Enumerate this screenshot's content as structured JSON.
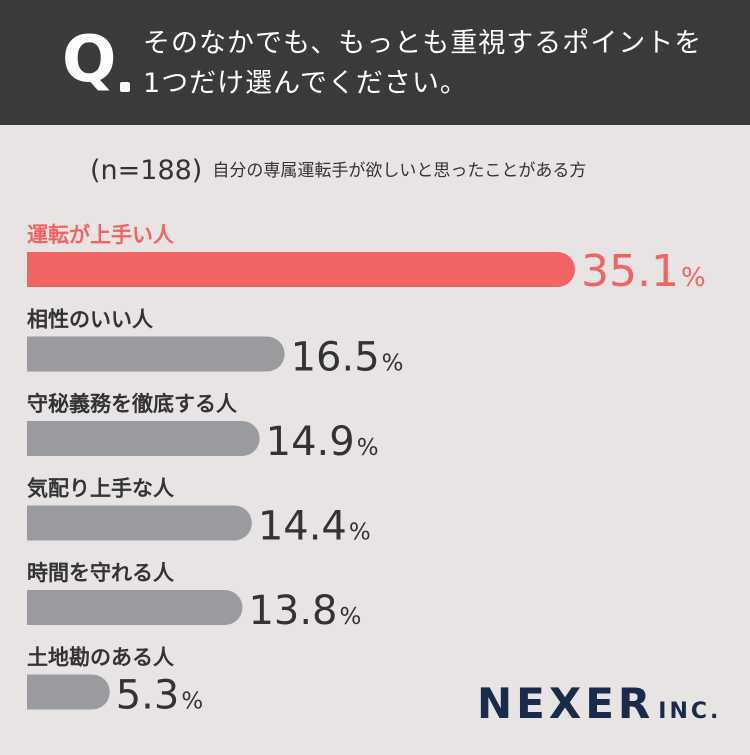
{
  "question": {
    "mark": "Q",
    "line1": "そのなかでも、もっとも重視するポイントを",
    "line2": "1つだけ選んでください。"
  },
  "sample": {
    "n_label": "(n=188)",
    "description": "自分の専属運転手が欲しいと思ったことがある方"
  },
  "colors": {
    "highlight": "#f26464",
    "bar": "#9a9b9f",
    "text": "#333333",
    "header_bg": "#3a3a3a",
    "background": "#e7e4e3"
  },
  "chart_data": {
    "type": "bar",
    "orientation": "horizontal",
    "unit": "%",
    "categories": [
      "運転が上手い人",
      "相性のいい人",
      "守秘義務を徹底する人",
      "気配り上手な人",
      "時間を守れる人",
      "土地勘のある人"
    ],
    "values": [
      35.1,
      16.5,
      14.9,
      14.4,
      13.8,
      5.3
    ],
    "value_labels": [
      "35.1",
      "16.5",
      "14.9",
      "14.4",
      "13.8",
      "5.3"
    ],
    "highlight_index": 0,
    "xlim": [
      0,
      35.1
    ]
  },
  "logo": {
    "name": "NEXER",
    "suffix": "INC."
  }
}
